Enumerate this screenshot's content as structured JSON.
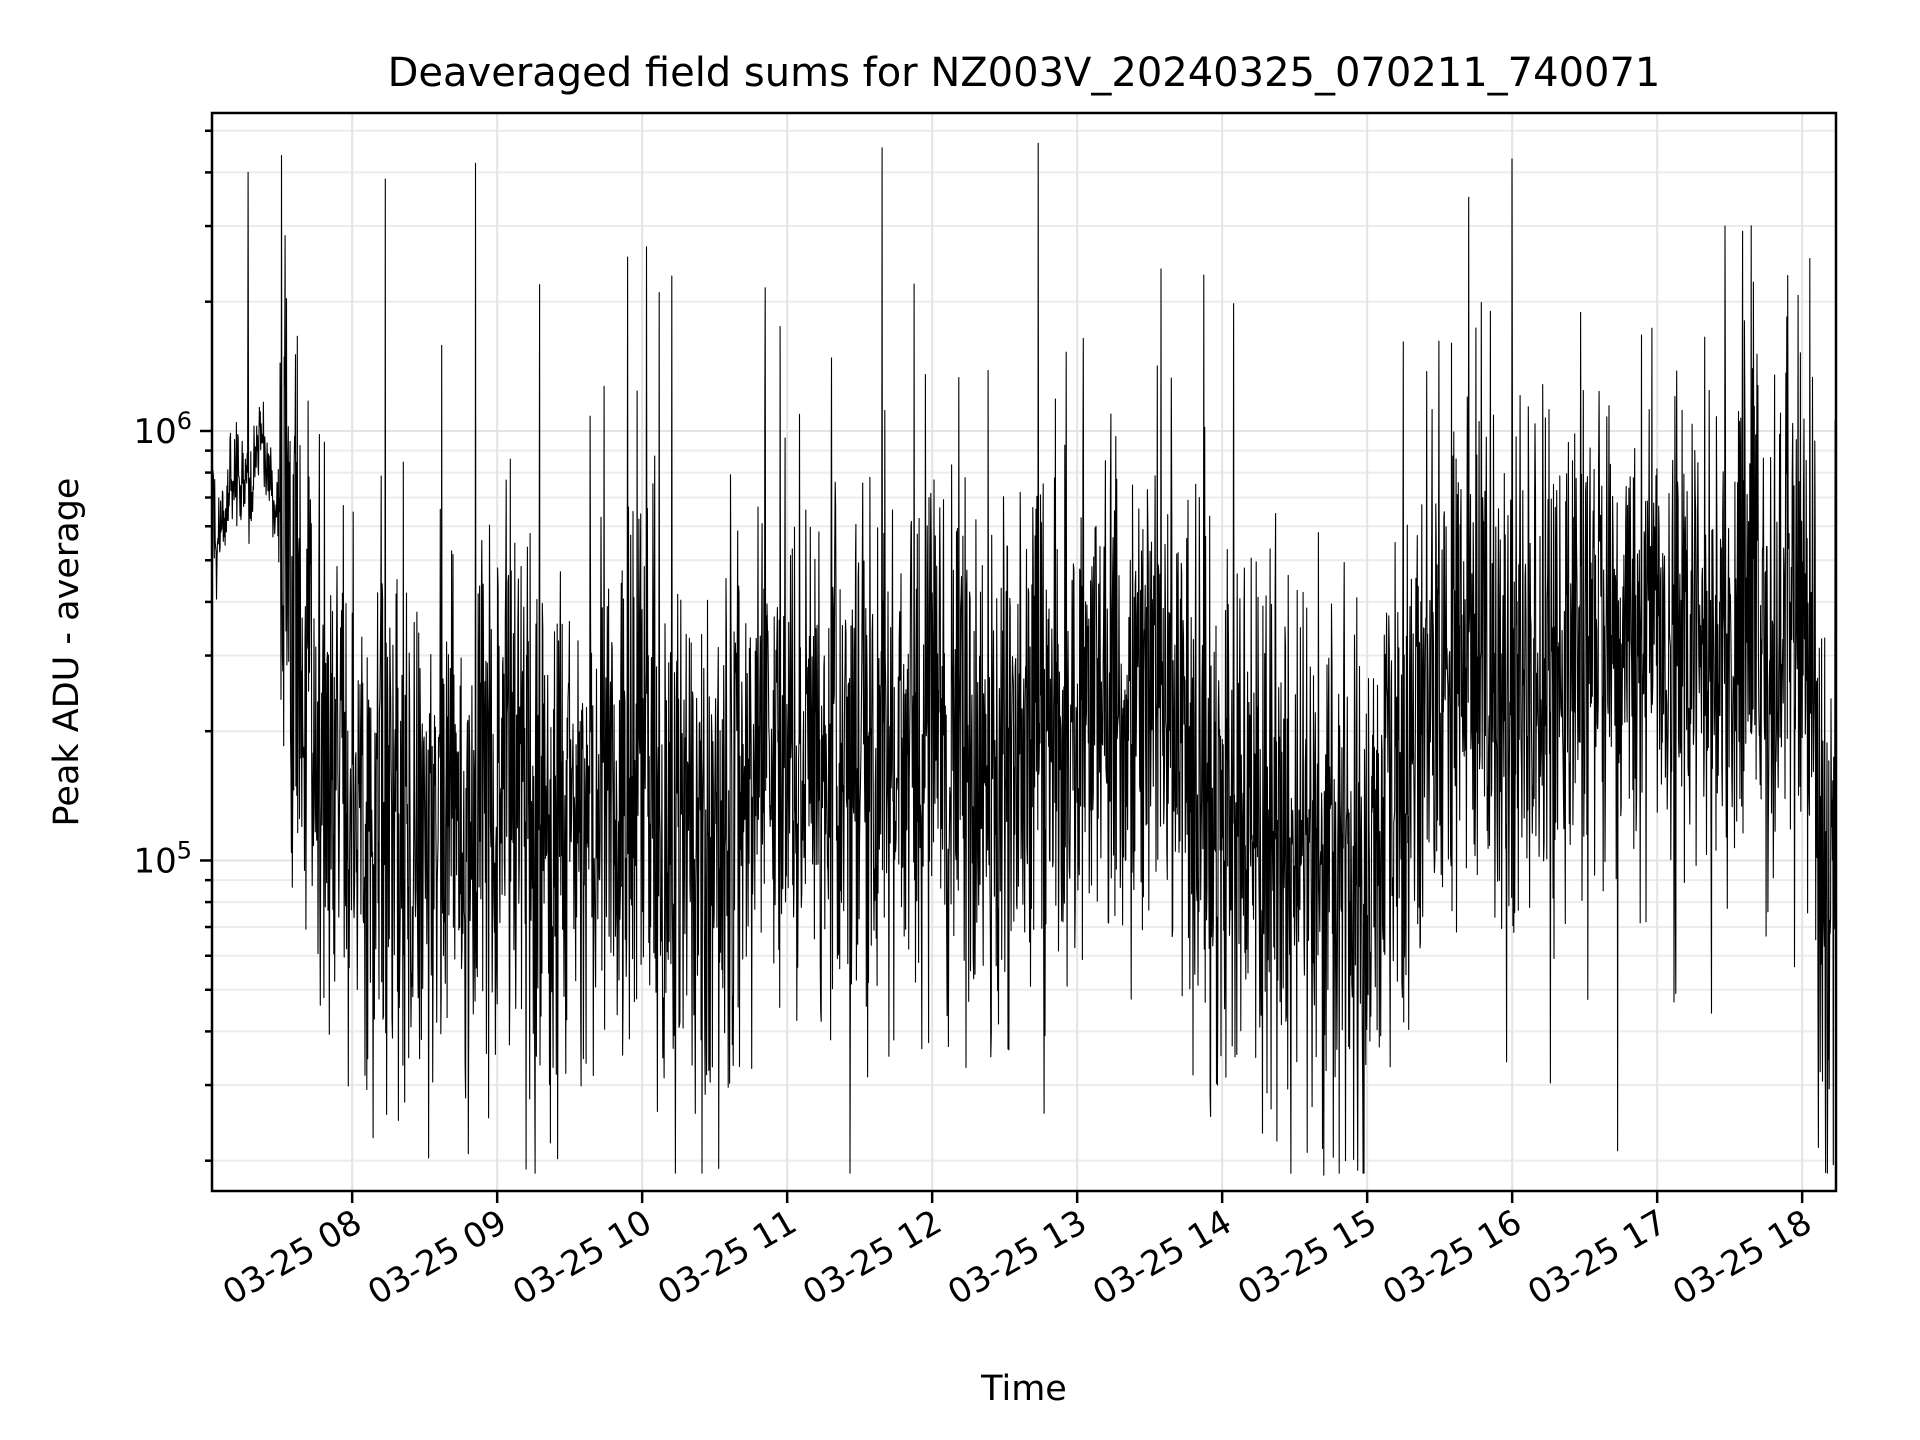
{
  "chart_data": {
    "type": "line",
    "title": "Deaveraged field sums for NZ003V_20240325_070211_740071",
    "xlabel": "Time",
    "ylabel": "Peak ADU - average",
    "xscale": "time",
    "yscale": "log",
    "xlim": [
      "2024-03-25 07:02",
      "2024-03-25 18:14"
    ],
    "ylim": [
      17000,
      5500000
    ],
    "grid": true,
    "legend": "none",
    "line_color": "#000000",
    "x_ticks": [
      "03-25 08",
      "03-25 09",
      "03-25 10",
      "03-25 11",
      "03-25 12",
      "03-25 13",
      "03-25 14",
      "03-25 15",
      "03-25 16",
      "03-25 17",
      "03-25 18"
    ],
    "y_ticks": [
      {
        "value": 100000,
        "base": "10",
        "exp": "5"
      },
      {
        "value": 1000000,
        "base": "10",
        "exp": "6"
      }
    ],
    "series": [
      {
        "x": [
          "2024-03-25 07:02",
          "2024-03-25 07:04",
          "2024-03-25 07:06",
          "2024-03-25 07:09",
          "2024-03-25 07:12",
          "2024-03-25 07:15",
          "2024-03-25 07:18",
          "2024-03-25 07:20",
          "2024-03-25 07:22",
          "2024-03-25 07:25",
          "2024-03-25 07:28",
          "2024-03-25 07:30",
          "2024-03-25 07:33",
          "2024-03-25 07:36",
          "2024-03-25 07:40",
          "2024-03-25 07:45",
          "2024-03-25 07:50",
          "2024-03-25 07:55",
          "2024-03-25 08:00",
          "2024-03-25 08:10",
          "2024-03-25 08:20",
          "2024-03-25 08:30",
          "2024-03-25 08:40",
          "2024-03-25 08:50",
          "2024-03-25 08:55",
          "2024-03-25 09:00",
          "2024-03-25 09:10",
          "2024-03-25 09:20",
          "2024-03-25 09:25",
          "2024-03-25 09:30",
          "2024-03-25 09:40",
          "2024-03-25 09:50",
          "2024-03-25 10:00",
          "2024-03-25 10:08",
          "2024-03-25 10:15",
          "2024-03-25 10:25",
          "2024-03-25 10:35",
          "2024-03-25 10:45",
          "2024-03-25 10:52",
          "2024-03-25 11:00",
          "2024-03-25 11:15",
          "2024-03-25 11:30",
          "2024-03-25 11:45",
          "2024-03-25 12:00",
          "2024-03-25 12:15",
          "2024-03-25 12:30",
          "2024-03-25 12:45",
          "2024-03-25 13:00",
          "2024-03-25 13:15",
          "2024-03-25 13:30",
          "2024-03-25 13:45",
          "2024-03-25 14:00",
          "2024-03-25 14:15",
          "2024-03-25 14:30",
          "2024-03-25 14:45",
          "2024-03-25 14:55",
          "2024-03-25 15:00",
          "2024-03-25 15:10",
          "2024-03-25 15:20",
          "2024-03-25 15:30",
          "2024-03-25 15:40",
          "2024-03-25 15:50",
          "2024-03-25 16:00",
          "2024-03-25 16:15",
          "2024-03-25 16:30",
          "2024-03-25 16:45",
          "2024-03-25 17:00",
          "2024-03-25 17:15",
          "2024-03-25 17:30",
          "2024-03-25 17:45",
          "2024-03-25 18:00",
          "2024-03-25 18:05",
          "2024-03-25 18:08",
          "2024-03-25 18:11",
          "2024-03-25 18:14"
        ],
        "y": [
          800000,
          500000,
          650000,
          720000,
          800000,
          780000,
          740000,
          900000,
          1000000,
          820000,
          700000,
          620000,
          500000,
          450000,
          350000,
          220000,
          170000,
          140000,
          150000,
          120000,
          130000,
          110000,
          120000,
          140000,
          200000,
          160000,
          130000,
          120000,
          110000,
          130000,
          140000,
          140000,
          140000,
          120000,
          110000,
          110000,
          120000,
          150000,
          200000,
          170000,
          190000,
          200000,
          170000,
          200000,
          150000,
          170000,
          210000,
          200000,
          230000,
          230000,
          190000,
          140000,
          120000,
          110000,
          100000,
          80000,
          90000,
          160000,
          230000,
          260000,
          340000,
          300000,
          240000,
          280000,
          310000,
          300000,
          290000,
          330000,
          350000,
          320000,
          350000,
          400000,
          90000,
          65000,
          110000
        ],
        "peak_values": [
          4000000,
          4200000,
          2100000,
          1750000,
          3500000,
          4300000,
          3000000,
          1900000
        ],
        "trough_values": [
          22000,
          18500,
          19000,
          20000,
          30000,
          35000
        ]
      }
    ]
  }
}
